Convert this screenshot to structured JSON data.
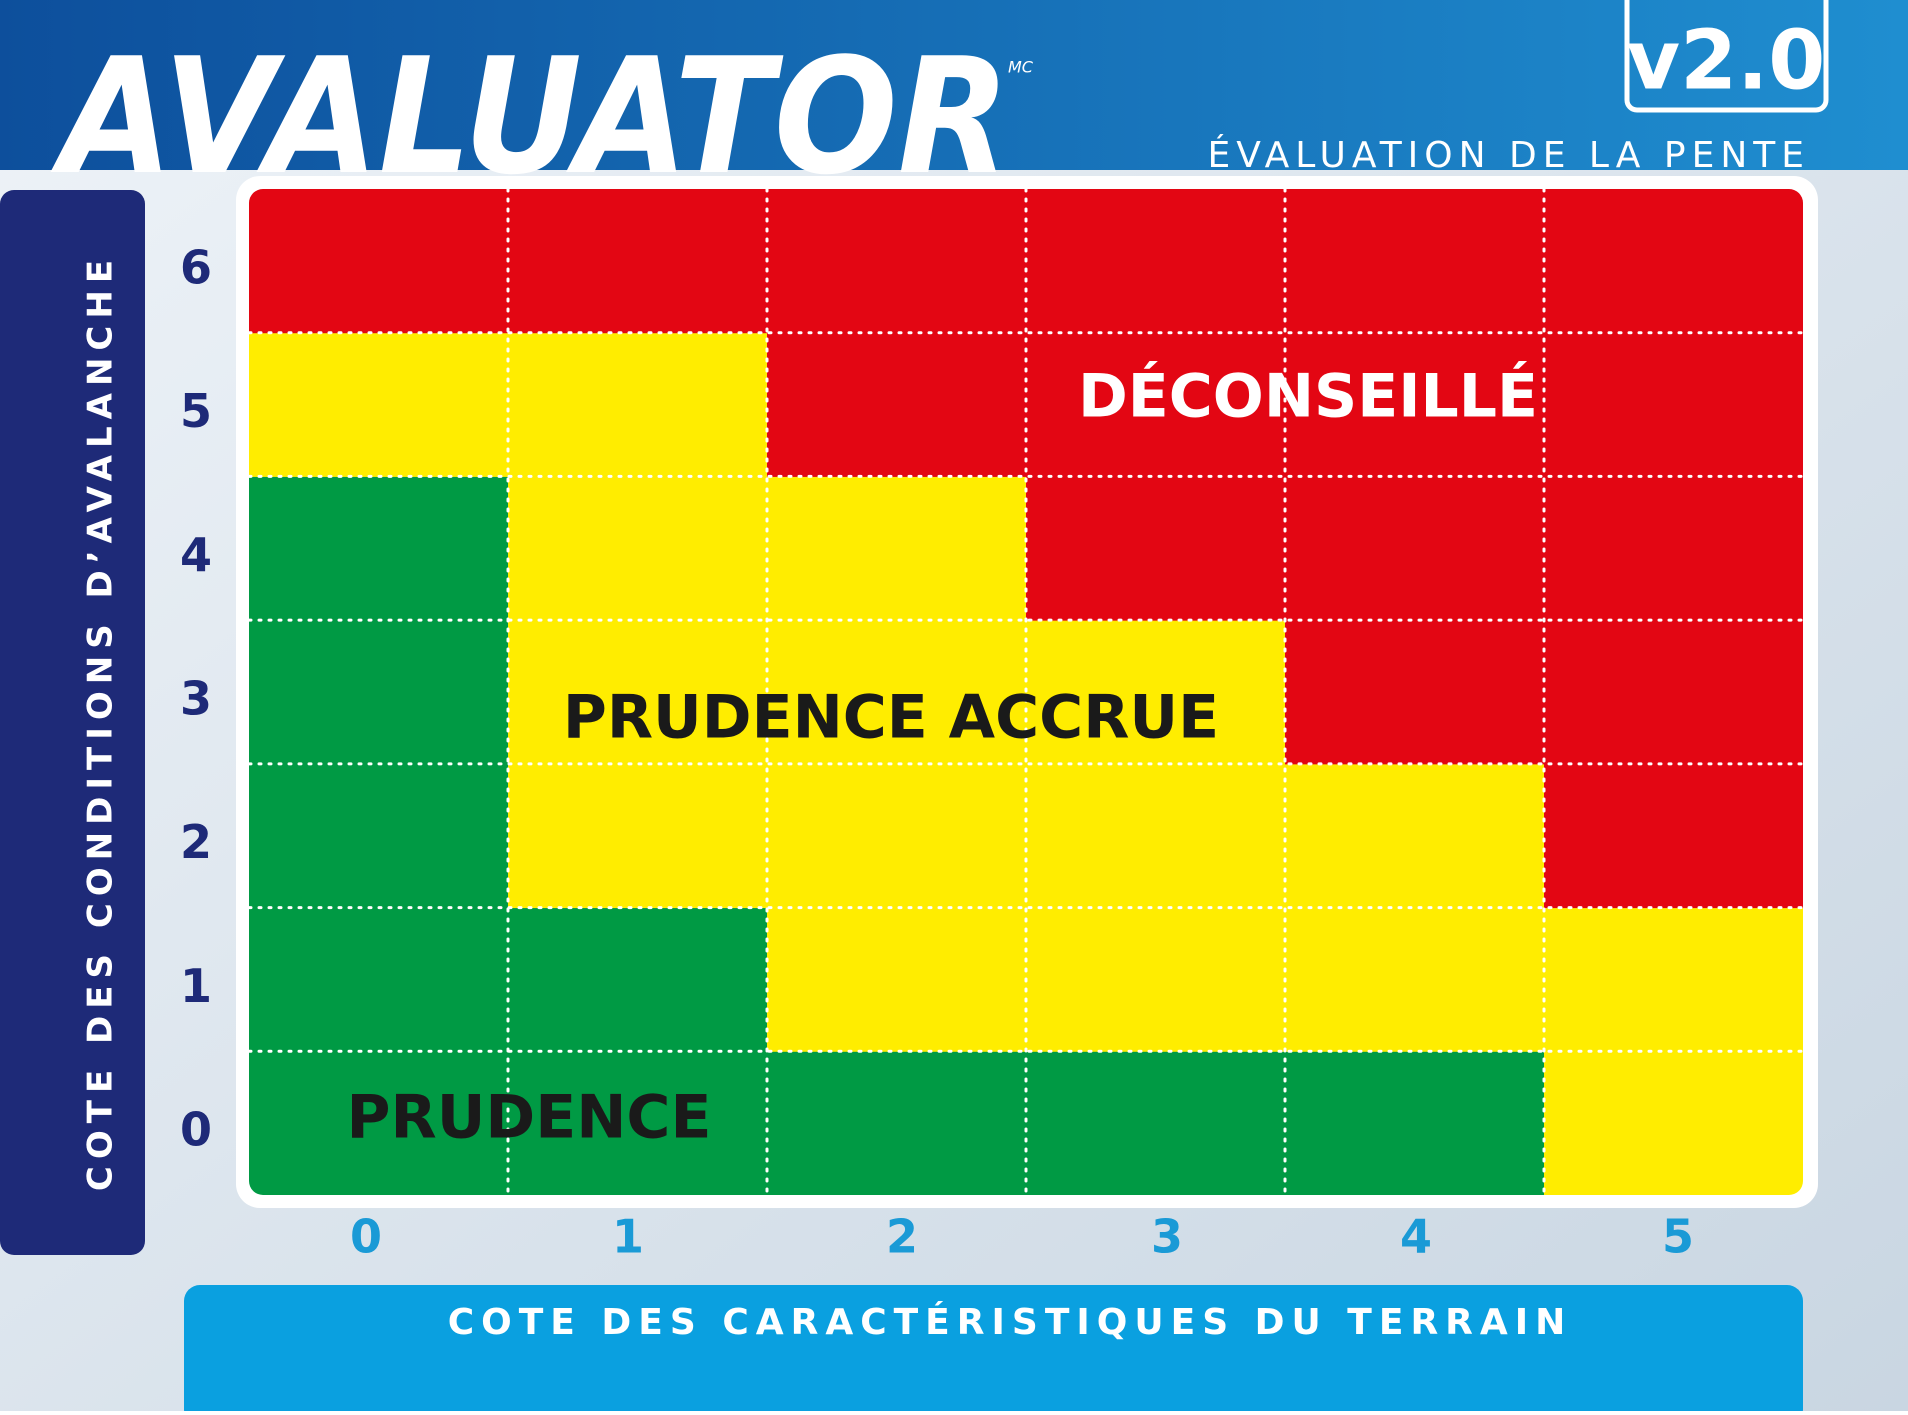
{
  "chart_data": {
    "type": "heatmap",
    "title": "AVALUATOR",
    "title_mark": "MC",
    "version": "v2.0",
    "subtitle": "ÉVALUATION DE LA PENTE",
    "x_label": "COTE DES CARACTÉRISTIQUES DU TERRAIN",
    "y_label": "COTE DES CONDITIONS D’AVALANCHE",
    "x_categories": [
      0,
      1,
      2,
      3,
      4,
      5
    ],
    "y_categories": [
      0,
      1,
      2,
      3,
      4,
      5,
      6
    ],
    "cells": [
      [
        "#009a44",
        "#009a44",
        "#009a44",
        "#009a44",
        "#009a44",
        "#ffed00"
      ],
      [
        "#009a44",
        "#009a44",
        "#ffed00",
        "#ffed00",
        "#ffed00",
        "#ffed00"
      ],
      [
        "#009a44",
        "#ffed00",
        "#ffed00",
        "#ffed00",
        "#ffed00",
        "#e30613"
      ],
      [
        "#009a44",
        "#ffed00",
        "#ffed00",
        "#ffed00",
        "#e30613",
        "#e30613"
      ],
      [
        "#009a44",
        "#ffed00",
        "#ffed00",
        "#e30613",
        "#e30613",
        "#e30613"
      ],
      [
        "#ffed00",
        "#ffed00",
        "#e30613",
        "#e30613",
        "#e30613",
        "#e30613"
      ],
      [
        "#e30613",
        "#e30613",
        "#e30613",
        "#e30613",
        "#e30613",
        "#e30613"
      ]
    ],
    "annotations": [
      {
        "text": "DÉCONSEILLÉ",
        "color": "#ffffff"
      },
      {
        "text": "PRUDENCE ACCRUE",
        "color": "#1a1a1a"
      },
      {
        "text": "PRUDENCE",
        "color": "#1a1a1a"
      }
    ],
    "grid": true
  }
}
